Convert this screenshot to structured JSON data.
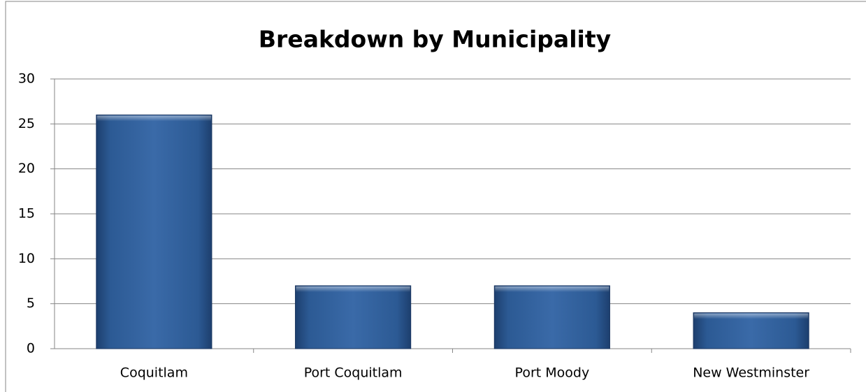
{
  "chart_data": {
    "type": "bar",
    "title": "Breakdown by Municipality",
    "categories": [
      "Coquitlam",
      "Port Coquitlam",
      "Port Moody",
      "New Westminster"
    ],
    "values": [
      26,
      7,
      7,
      4
    ],
    "color": "#2f5f9a",
    "ylim": [
      0,
      30
    ],
    "yticks": [
      0,
      5,
      10,
      15,
      20,
      25,
      30
    ],
    "grid": true
  }
}
